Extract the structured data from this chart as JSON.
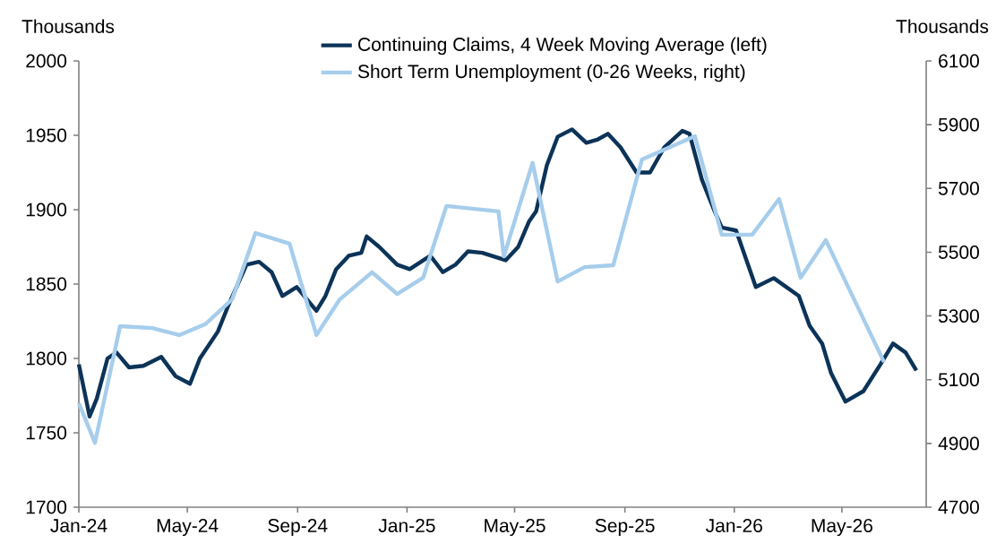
{
  "chart_data": {
    "type": "line",
    "ylabel": "Thousands",
    "y2label": "Thousands",
    "xlim": [
      "2024-01-01",
      "2026-08-03"
    ],
    "xticks": [
      {
        "value": "2024-01-01",
        "label": "Jan-24"
      },
      {
        "value": "2024-05-01",
        "label": "May-24"
      },
      {
        "value": "2024-09-01",
        "label": "Sep-24"
      },
      {
        "value": "2025-01-01",
        "label": "Jan-25"
      },
      {
        "value": "2025-05-01",
        "label": "May-25"
      },
      {
        "value": "2025-09-01",
        "label": "Sep-25"
      },
      {
        "value": "2026-01-01",
        "label": "Jan-26"
      },
      {
        "value": "2026-05-01",
        "label": "May-26"
      }
    ],
    "ylim": [
      1700,
      2000
    ],
    "yticks": [
      1700,
      1750,
      1800,
      1850,
      1900,
      1950,
      2000
    ],
    "y2lim": [
      4700,
      6100
    ],
    "y2ticks": [
      4700,
      4900,
      5100,
      5300,
      5500,
      5700,
      5900,
      6100
    ],
    "legend": "top",
    "series": [
      {
        "name": "Continuing Claims, 4 Week Moving Average (left)",
        "color": "#0c3358",
        "x": [
          "2024-01-01",
          "2024-01-13",
          "2024-01-21",
          "2024-02-02",
          "2024-02-12",
          "2024-02-26",
          "2024-03-13",
          "2024-04-02",
          "2024-04-18",
          "2024-05-04",
          "2024-05-15",
          "2024-06-04",
          "2024-06-16",
          "2024-07-06",
          "2024-07-20",
          "2024-08-03",
          "2024-08-15",
          "2024-08-31",
          "2024-09-22",
          "2024-10-02",
          "2024-10-14",
          "2024-10-28",
          "2024-11-11",
          "2024-11-17",
          "2024-12-01",
          "2024-12-21",
          "2025-01-04",
          "2025-01-27",
          "2025-02-10",
          "2025-02-24",
          "2025-03-10",
          "2025-03-26",
          "2025-04-21",
          "2025-05-05",
          "2025-05-17",
          "2025-05-25",
          "2025-06-06",
          "2025-06-18",
          "2025-07-04",
          "2025-07-20",
          "2025-08-01",
          "2025-08-13",
          "2025-08-27",
          "2025-09-14",
          "2025-09-29",
          "2025-10-15",
          "2025-11-04",
          "2025-11-12",
          "2025-11-26",
          "2025-12-10",
          "2025-12-18",
          "2026-01-03",
          "2026-01-25",
          "2026-02-14",
          "2026-03-14",
          "2026-03-26",
          "2026-04-09",
          "2026-04-19",
          "2026-05-05",
          "2026-05-25",
          "2026-06-13",
          "2026-06-27",
          "2026-07-11",
          "2026-07-23"
        ],
        "values": [
          1796,
          1761,
          1773,
          1800,
          1804,
          1794,
          1795,
          1801,
          1788,
          1783,
          1800,
          1818,
          1836,
          1863,
          1865,
          1858,
          1842,
          1848,
          1832,
          1842,
          1860,
          1869,
          1871,
          1882,
          1875,
          1863,
          1860,
          1869,
          1858,
          1863,
          1872,
          1871,
          1866,
          1875,
          1892,
          1899,
          1930,
          1949,
          1954,
          1945,
          1947,
          1951,
          1942,
          1925,
          1925,
          1942,
          1953,
          1951,
          1920,
          1899,
          1888,
          1886,
          1848,
          1854,
          1842,
          1822,
          1810,
          1790,
          1771,
          1778,
          1796,
          1810,
          1804,
          1792
        ]
      },
      {
        "name": "Short Term Unemployment (0-26 Weeks, right)",
        "color": "#a6cdec",
        "axis": "y2",
        "x": [
          "2024-01-01",
          "2024-01-19",
          "2024-02-16",
          "2024-03-23",
          "2024-04-22",
          "2024-05-21",
          "2024-06-20",
          "2024-07-16",
          "2024-08-23",
          "2024-09-22",
          "2024-10-18",
          "2024-11-23",
          "2024-12-21",
          "2025-01-19",
          "2025-02-14",
          "2025-04-13",
          "2025-04-19",
          "2025-05-21",
          "2025-06-18",
          "2025-07-18",
          "2025-08-19",
          "2025-09-20",
          "2025-11-18",
          "2025-12-18",
          "2026-01-21",
          "2026-02-20",
          "2026-03-16",
          "2026-04-13",
          "2026-06-17"
        ],
        "values": [
          5026,
          4902,
          5268,
          5262,
          5240,
          5274,
          5352,
          5560,
          5527,
          5240,
          5352,
          5437,
          5369,
          5420,
          5645,
          5628,
          5487,
          5780,
          5408,
          5453,
          5459,
          5791,
          5864,
          5555,
          5555,
          5667,
          5420,
          5538,
          5155
        ]
      }
    ]
  }
}
